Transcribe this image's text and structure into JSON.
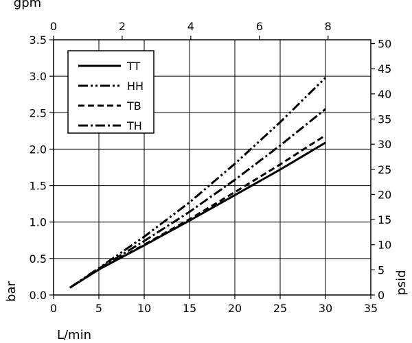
{
  "chart_data": {
    "type": "line",
    "title": "",
    "xlabel": "L/min",
    "ylabel": "bar",
    "x2label": "gpm",
    "y2label": "psid",
    "xlim": [
      0,
      35
    ],
    "ylim": [
      0,
      3.5
    ],
    "x2lim": [
      0,
      9.246
    ],
    "y2lim": [
      0,
      50.76
    ],
    "xticks": [
      0,
      5,
      10,
      15,
      20,
      25,
      30,
      35
    ],
    "yticks": [
      "0.0",
      "0.5",
      "1.0",
      "1.5",
      "2.0",
      "2.5",
      "3.0",
      "3.5"
    ],
    "x2ticks": [
      0,
      2,
      4,
      6,
      8
    ],
    "y2ticks": [
      0,
      5,
      10,
      15,
      20,
      25,
      30,
      35,
      40,
      45,
      50
    ],
    "grid": true,
    "legend_position": "top-left",
    "series": [
      {
        "name": "TT",
        "dash": "solid",
        "x": [
          1.8,
          5,
          10,
          15,
          20,
          25,
          30
        ],
        "y": [
          0.1,
          0.35,
          0.68,
          1.02,
          1.37,
          1.72,
          2.09
        ]
      },
      {
        "name": "HH",
        "dash": "dash-dot-dot",
        "x": [
          1.8,
          5,
          10,
          15,
          20,
          25,
          30
        ],
        "y": [
          0.1,
          0.37,
          0.8,
          1.27,
          1.8,
          2.37,
          2.98
        ]
      },
      {
        "name": "TB",
        "dash": "dashed",
        "x": [
          1.8,
          5,
          10,
          15,
          20,
          25,
          30
        ],
        "y": [
          0.1,
          0.35,
          0.69,
          1.04,
          1.41,
          1.79,
          2.19
        ]
      },
      {
        "name": "TH",
        "dash": "dash-dot",
        "x": [
          1.8,
          5,
          10,
          15,
          20,
          25,
          30
        ],
        "y": [
          0.1,
          0.36,
          0.74,
          1.14,
          1.58,
          2.05,
          2.55
        ]
      }
    ]
  }
}
